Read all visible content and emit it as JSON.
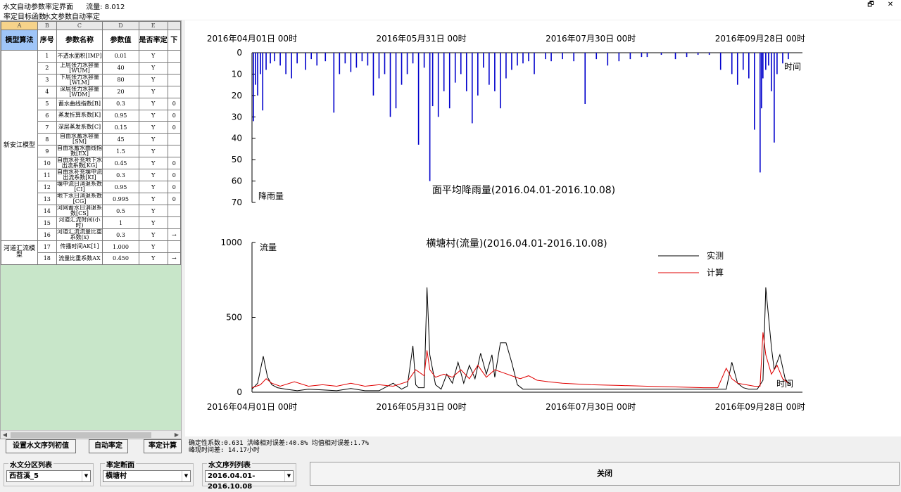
{
  "window": {
    "title": "水文自动参数率定界面___ 流量: 8.012",
    "restore_glyph": "🗗",
    "close_glyph": "✕"
  },
  "menu": [
    "率定目标函数",
    "水文参数自动率定"
  ],
  "grid": {
    "column_letters": [
      "A",
      "B",
      "C",
      "D",
      "E",
      ""
    ],
    "headers": [
      "模型算法",
      "序号",
      "参数名称",
      "参数值",
      "是否率定",
      "下"
    ],
    "groups": [
      {
        "name": "新安江模型",
        "rows": [
          {
            "no": "1",
            "name": "不透水面积[IMP]",
            "value": "0.01",
            "flag": "Y",
            "extra": ""
          },
          {
            "no": "2",
            "name": "上层张力水容量[WUM]",
            "value": "40",
            "flag": "Y",
            "extra": ""
          },
          {
            "no": "3",
            "name": "下层张力水容量[WLM]",
            "value": "80",
            "flag": "Y",
            "extra": ""
          },
          {
            "no": "4",
            "name": "深层张力水容量[WDM]",
            "value": "20",
            "flag": "Y",
            "extra": ""
          },
          {
            "no": "5",
            "name": "蓄水曲线指数[B]",
            "value": "0.3",
            "flag": "Y",
            "extra": "0"
          },
          {
            "no": "6",
            "name": "蒸发折算系数[K]",
            "value": "0.95",
            "flag": "Y",
            "extra": "0"
          },
          {
            "no": "7",
            "name": "深层蒸发系数[C]",
            "value": "0.15",
            "flag": "Y",
            "extra": "0"
          },
          {
            "no": "8",
            "name": "自由水蓄水容量[SM]",
            "value": "45",
            "flag": "Y",
            "extra": ""
          },
          {
            "no": "9",
            "name": "自由水蓄水曲线指数[EX]",
            "value": "1.5",
            "flag": "Y",
            "extra": ""
          },
          {
            "no": "10",
            "name": "自由水补充地下水出流系数[KG]",
            "value": "0.45",
            "flag": "Y",
            "extra": "0"
          },
          {
            "no": "11",
            "name": "自由水补充壤中流出流系数[KI]",
            "value": "0.3",
            "flag": "Y",
            "extra": "0"
          },
          {
            "no": "12",
            "name": "壤中流日消退系数[CI]",
            "value": "0.95",
            "flag": "Y",
            "extra": "0"
          },
          {
            "no": "13",
            "name": "地下水日消退系数[CG]",
            "value": "0.995",
            "flag": "Y",
            "extra": "0"
          },
          {
            "no": "14",
            "name": "河网蓄水日消退系数[CS]",
            "value": "0.5",
            "flag": "Y",
            "extra": ""
          },
          {
            "no": "15",
            "name": "河道汇流时间(小时)",
            "value": "1",
            "flag": "Y",
            "extra": ""
          },
          {
            "no": "16",
            "name": "河道汇流流量比重系数(x)",
            "value": "0.3",
            "flag": "Y",
            "extra": "→"
          }
        ]
      },
      {
        "name": "河道汇流模型",
        "rows": [
          {
            "no": "17",
            "name": "传播时间AK[1]",
            "value": "1.000",
            "flag": "Y",
            "extra": ""
          },
          {
            "no": "18",
            "name": "流量比重系数AX",
            "value": "0.450",
            "flag": "Y",
            "extra": "→"
          }
        ]
      }
    ]
  },
  "buttons": {
    "set_initial": "设置水文序列初值",
    "auto_calibrate": "自动率定",
    "calibrate_calc": "率定计算",
    "close": "关闭"
  },
  "selectors": {
    "zone": {
      "label": "水文分区列表",
      "value": "西苕溪_5"
    },
    "section": {
      "label": "率定断面",
      "value": "横塘村"
    },
    "series": {
      "label": "水文序列列表",
      "value": "2016.04.01-2016.10.08"
    }
  },
  "stats": {
    "line1": "确定性系数:0.631 洪峰相对误差:40.8% 均值相对误差:1.7%",
    "line2": "峰现时间差: 14.17小时"
  },
  "colors": {
    "rain": "#0000cc",
    "observed": "#000000",
    "computed": "#e00000",
    "grid_bg": "#c8e6c9"
  },
  "chart_data": [
    {
      "type": "bar",
      "title": "面平均降雨量(2016.04.01-2016.10.08)",
      "xlabel": "时间",
      "ylabel": "降雨量",
      "x_tick_labels": [
        "2016年04月01日 00时",
        "2016年05月31日 00时",
        "2016年07月30日 00时",
        "2016年09月28日 00时"
      ],
      "x_tick_days": [
        0,
        60,
        120,
        180
      ],
      "y_tick_labels": [
        "0",
        "10",
        "20",
        "30",
        "40",
        "50",
        "60",
        "70"
      ],
      "ylim": [
        0,
        70
      ],
      "y_inverted": true,
      "x_days": [
        0.5,
        1.2,
        2.0,
        3.0,
        3.8,
        5,
        6.5,
        8,
        10,
        12,
        14,
        16,
        19,
        21,
        23,
        26,
        29,
        31,
        33,
        35,
        37,
        39,
        41,
        43,
        45,
        47,
        49,
        51,
        53,
        55,
        57,
        59,
        61,
        63,
        64,
        66,
        68,
        70,
        72,
        74,
        76,
        78,
        80,
        82,
        84,
        86,
        88,
        90,
        92,
        94,
        96,
        98,
        100,
        104,
        106,
        110,
        114,
        118,
        122,
        126,
        130,
        134,
        138,
        140,
        145,
        150,
        154,
        158,
        162,
        166,
        170,
        172,
        174,
        176,
        178,
        180,
        180.5,
        181,
        182,
        183,
        184,
        185,
        186,
        188,
        190
      ],
      "values": [
        32,
        15,
        20,
        10,
        27,
        8,
        5,
        4,
        6,
        10,
        12,
        5,
        8,
        3,
        6,
        4,
        28,
        10,
        5,
        9,
        7,
        4,
        6,
        20,
        12,
        10,
        30,
        26,
        15,
        10,
        5,
        43,
        7,
        60,
        25,
        30,
        18,
        26,
        14,
        10,
        18,
        33,
        20,
        7,
        15,
        18,
        26,
        12,
        8,
        6,
        5,
        4,
        10,
        3,
        4,
        3,
        4,
        24,
        3,
        6,
        4,
        3,
        2,
        2,
        1,
        3,
        2,
        1,
        1,
        8,
        10,
        15,
        8,
        12,
        36,
        56,
        26,
        12,
        8,
        6,
        18,
        42,
        10,
        5,
        3
      ]
    },
    {
      "type": "line",
      "title": "横塘村(流量)(2016.04.01-2016.10.08)",
      "xlabel": "时间",
      "ylabel": "流量",
      "x_tick_labels": [
        "2016年04月01日 00时",
        "2016年05月31日 00时",
        "2016年07月30日 00时",
        "2016年09月28日 00时"
      ],
      "x_tick_days": [
        0,
        60,
        120,
        180
      ],
      "y_tick_labels": [
        "0",
        "500",
        "1000"
      ],
      "ylim": [
        0,
        1000
      ],
      "legend_position": "top-right",
      "series": [
        {
          "name": "实测",
          "x_days": [
            0,
            2,
            4,
            5.5,
            7,
            9,
            12,
            16,
            20,
            25,
            30,
            35,
            40,
            45,
            50,
            53,
            55,
            57,
            58,
            59,
            61,
            62,
            63,
            64,
            65,
            67,
            69,
            71,
            73,
            75,
            77,
            79,
            81,
            83,
            85,
            86,
            88,
            90,
            92,
            94,
            96,
            98,
            100,
            102,
            104,
            106,
            110,
            120,
            130,
            140,
            150,
            160,
            165,
            168,
            170,
            172,
            174,
            176,
            178,
            179,
            181,
            182,
            184,
            185,
            187,
            189,
            191
          ],
          "values": [
            20,
            60,
            240,
            100,
            50,
            30,
            20,
            10,
            20,
            15,
            10,
            25,
            10,
            10,
            60,
            20,
            40,
            310,
            50,
            30,
            30,
            700,
            250,
            150,
            50,
            20,
            120,
            60,
            200,
            60,
            180,
            90,
            260,
            120,
            250,
            100,
            330,
            330,
            200,
            50,
            20,
            20,
            20,
            20,
            20,
            20,
            20,
            20,
            20,
            20,
            20,
            20,
            20,
            20,
            200,
            60,
            30,
            20,
            20,
            20,
            80,
            700,
            300,
            150,
            250,
            80,
            50
          ]
        },
        {
          "name": "计算",
          "x_days": [
            0,
            3,
            5,
            7,
            10,
            15,
            20,
            25,
            30,
            35,
            40,
            45,
            50,
            55,
            58,
            61,
            62,
            63,
            65,
            68,
            71,
            74,
            77,
            80,
            83,
            86,
            89,
            92,
            95,
            98,
            101,
            105,
            110,
            120,
            130,
            140,
            150,
            160,
            165,
            168,
            170,
            172,
            175,
            178,
            180,
            181,
            182,
            184,
            186,
            188,
            190
          ],
          "values": [
            30,
            50,
            90,
            60,
            40,
            70,
            40,
            50,
            40,
            60,
            40,
            50,
            40,
            70,
            150,
            110,
            280,
            150,
            100,
            120,
            100,
            150,
            90,
            180,
            100,
            150,
            130,
            110,
            90,
            110,
            80,
            70,
            60,
            50,
            45,
            40,
            35,
            30,
            30,
            160,
            90,
            60,
            50,
            40,
            40,
            400,
            250,
            120,
            180,
            90,
            60
          ]
        }
      ]
    }
  ]
}
